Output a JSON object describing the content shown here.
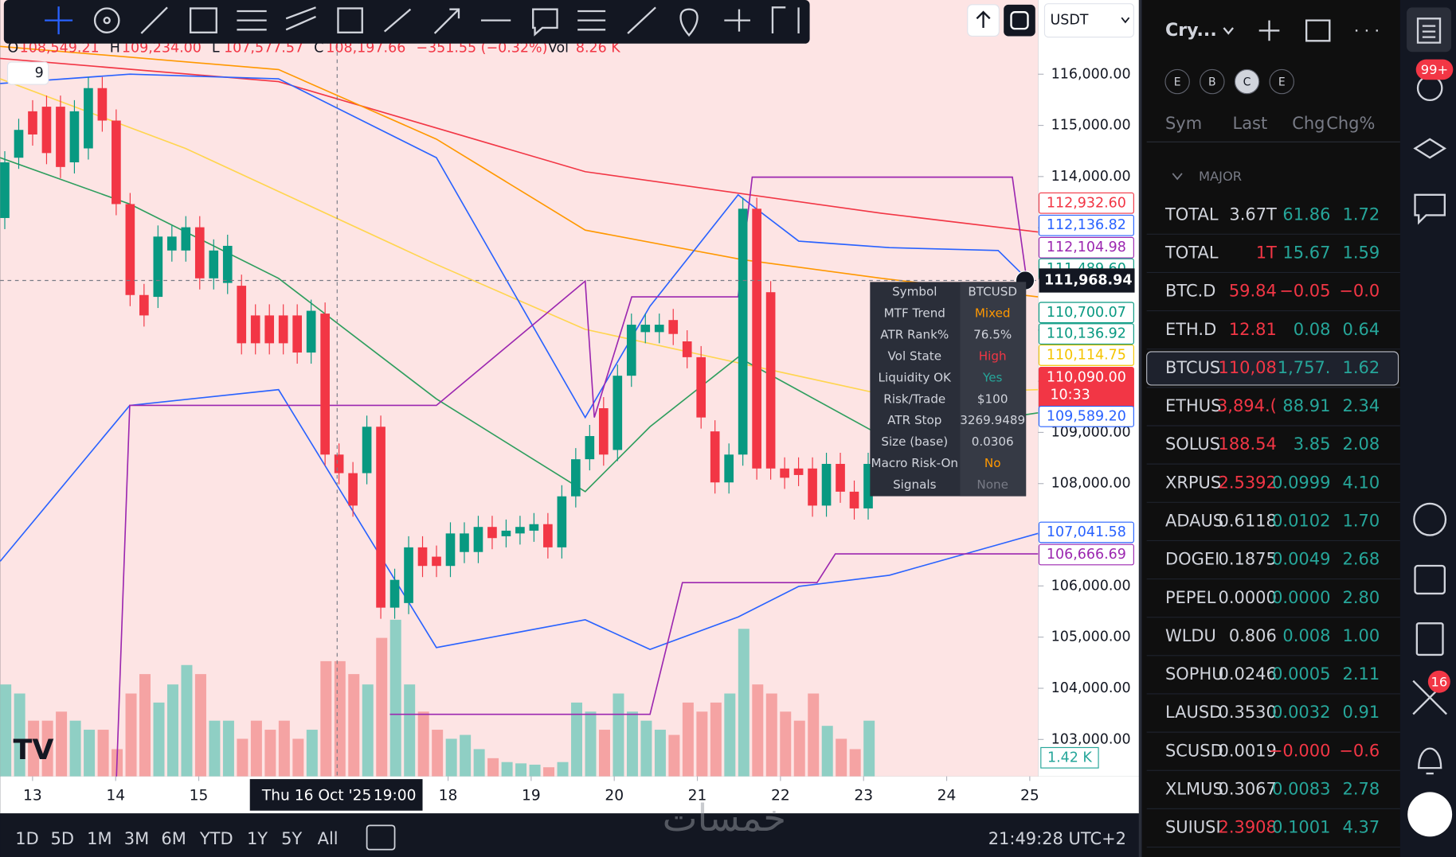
{
  "chart": {
    "type": "candlestick",
    "indicator_count": 9,
    "ohlc": [
      {
        "key": "O",
        "value": "108,549.21"
      },
      {
        "key": "H",
        "value": "109,234.00"
      },
      {
        "key": "L",
        "value": "107,577.57"
      },
      {
        "key": "C",
        "value": "108,197.66"
      }
    ],
    "change": "−351.55 (−0.32%)",
    "volume_key": "Vol",
    "volume_text": "8.26 K",
    "ylim": [
      102280,
      117450
    ],
    "yticks": [
      {
        "value": 116000,
        "label": "116,000.00"
      },
      {
        "value": 115000,
        "label": "115,000.00"
      },
      {
        "value": 114000,
        "label": "114,000.00"
      },
      {
        "value": 113000,
        "label": "113,000.00"
      },
      {
        "value": 112000,
        "label": "112,000.00"
      },
      {
        "value": 111000,
        "label": "111,000.00"
      },
      {
        "value": 110000,
        "label": "110,000.00"
      },
      {
        "value": 109000,
        "label": "109,000.00"
      },
      {
        "value": 108000,
        "label": "108,000.00"
      },
      {
        "value": 107000,
        "label": "107,000.00"
      },
      {
        "value": 106000,
        "label": "106,000.00"
      },
      {
        "value": 105000,
        "label": "105,000.00"
      },
      {
        "value": 104000,
        "label": "104,000.00"
      },
      {
        "value": 103000,
        "label": "103,000.00"
      }
    ],
    "xlim": [
      12.61,
      25.1
    ],
    "xticks": [
      13,
      14,
      15,
      18,
      19,
      20,
      21,
      22,
      23,
      24,
      25
    ],
    "crosshair_date": "Thu 16 Oct '25",
    "crosshair_time": "19:00",
    "candles": {
      "up_color": "#089981",
      "down_color": "#f23645",
      "open": [
        113190,
        114368,
        115275,
        115365,
        115365,
        114278,
        114550,
        115728,
        115094,
        113462,
        111685,
        111649,
        112555,
        112555,
        113009,
        112011,
        111921,
        111866,
        111286,
        111286,
        111286,
        111286,
        110561,
        111322,
        108567,
        108204,
        108204,
        109111,
        105576,
        105666,
        106754,
        106572,
        106391,
        106663,
        106663,
        107153,
        106971,
        107026,
        107080,
        107207,
        106754,
        107751,
        108476,
        109473,
        108657,
        110108,
        110960,
        110960,
        111196,
        110779,
        110470,
        109020,
        108023,
        108567,
        113371,
        111740,
        108295,
        108295,
        108295,
        107570,
        108385,
        107842,
        107515
      ],
      "close": [
        114278,
        114912,
        114822,
        114459,
        114187,
        115275,
        115728,
        115094,
        113462,
        111685,
        111286,
        112827,
        112827,
        113009,
        112011,
        112555,
        112646,
        110742,
        110742,
        110742,
        110742,
        110561,
        111377,
        108567,
        108204,
        107570,
        109111,
        105576,
        106119,
        106754,
        106391,
        106391,
        107026,
        107026,
        107153,
        106935,
        107080,
        107153,
        107207,
        106754,
        107751,
        108476,
        108929,
        108567,
        110108,
        111105,
        111105,
        111105,
        110924,
        110470,
        109292,
        108023,
        108567,
        113371,
        108295,
        108295,
        108114,
        108168,
        107570,
        108385,
        107842,
        107515,
        108385
      ]
    },
    "volume": {
      "vlim": [
        0,
        60
      ],
      "values": [
        7.1,
        6.4,
        4.3,
        4.3,
        5,
        4.3,
        3.6,
        3.6,
        2.1,
        6.4,
        7.9,
        5.7,
        7.1,
        8.6,
        7.9,
        4.3,
        4.3,
        2.9,
        4.3,
        3.6,
        4.3,
        2.9,
        3.6,
        8.9,
        8.9,
        7.9,
        7.1,
        10.7,
        12.1,
        7.1,
        5,
        3.6,
        2.9,
        3.2,
        2.1,
        1.4,
        1.1,
        1,
        0.9,
        0.7,
        1.1,
        5.7,
        5,
        3.6,
        6.4,
        5,
        4.3,
        3.6,
        3.2,
        5.7,
        5,
        5.7,
        6.4,
        11.4,
        7.1,
        6.4,
        5,
        4.3,
        6.4,
        3.9,
        2.9,
        2.1,
        4.3
      ],
      "tag": {
        "value": 1.42,
        "label": "1.42 K",
        "color": "#26a69a"
      }
    },
    "lines": [
      {
        "color": "#f23645",
        "x": [
          12.61,
          15.96,
          19.65,
          23.22,
          25.1
        ],
        "values": [
          116308,
          115855,
          114096,
          113281,
          112918
        ]
      },
      {
        "color": "#ff9800",
        "x": [
          12.61,
          15.96,
          17.86,
          19.65,
          21.55,
          23.22,
          25.1
        ],
        "values": [
          116544,
          116091,
          114731,
          112954,
          112374,
          112011,
          111649
        ]
      },
      {
        "color": "#ffd54f",
        "x": [
          12.61,
          14.84,
          17.86,
          19.65,
          23.22,
          25.1
        ],
        "values": [
          115909,
          114550,
          112283,
          111014,
          109745,
          109836
        ]
      },
      {
        "color": "#2e9e5e",
        "x": [
          12.61,
          14.17,
          15.96,
          17.86,
          19.65,
          20.43,
          21.49,
          23.22,
          25.1
        ],
        "values": [
          114368,
          113462,
          112011,
          109655,
          107842,
          109111,
          110470,
          108929,
          109383
        ]
      },
      {
        "color": "#2962ff",
        "x": [
          12.61,
          14.17,
          15.96,
          17.86,
          19.65,
          20.43,
          21.49,
          22.22,
          23.31,
          24.62,
          24.96
        ],
        "values": [
          115819,
          116000,
          115909,
          114368,
          109292,
          111468,
          113643,
          112737,
          112610,
          112555,
          112011
        ]
      },
      {
        "color": "#2962ff",
        "x": [
          12.61,
          14.17,
          15.96,
          17.86,
          19.65,
          20.43,
          21.49,
          22.22,
          23.31,
          25.1
        ],
        "values": [
          106482,
          109528,
          109836,
          104796,
          105340,
          104760,
          105394,
          105992,
          106210,
          107026
        ]
      },
      {
        "color": "#9c27b0",
        "x": [
          14.01,
          14.17,
          17.86,
          19.65,
          19.76,
          20.21,
          21.49,
          21.66,
          24.79,
          24.96
        ],
        "values": [
          102276,
          109528,
          109528,
          111957,
          109292,
          111649,
          111649,
          113988,
          113988,
          112011
        ]
      },
      {
        "color": "#9c27b0",
        "x": [
          17.3,
          20.43,
          20.82,
          22.44,
          22.66,
          25.1
        ],
        "values": [
          103490,
          103490,
          106065,
          106065,
          106627,
          106627
        ]
      }
    ],
    "price_tags": [
      {
        "value": 112932.6,
        "label": "112,932.60",
        "color": "#f23645",
        "filled": false
      },
      {
        "value": 112136.82,
        "label": "112,136.82",
        "color": "#2962ff",
        "filled": false
      },
      {
        "value": 112104.98,
        "label": "112,104.98",
        "color": "#9c27b0",
        "filled": false
      },
      {
        "value": 111489.6,
        "label": "111,489.60",
        "color": "#089981",
        "filled": false
      },
      {
        "value": 110700.07,
        "label": "110,700.07",
        "color": "#089981",
        "filled": false
      },
      {
        "value": 110136.92,
        "label": "110,136.92",
        "color": "#089981",
        "filled": false
      },
      {
        "value": 110114.75,
        "label": "110,114.75",
        "color": "#f5c400",
        "filled": false
      },
      {
        "value": 110090,
        "label": "110,090.00",
        "color": "#f23645",
        "filled": true,
        "countdown": "10:33"
      },
      {
        "value": 109589.2,
        "label": "109,589.20",
        "color": "#2962ff",
        "filled": false
      },
      {
        "value": 107041.58,
        "label": "107,041.58",
        "color": "#2962ff",
        "filled": false
      },
      {
        "value": 106666.69,
        "label": "106,666.69",
        "color": "#9c27b0",
        "filled": false
      }
    ],
    "crosshair_price": {
      "value": 111968.94,
      "label": "111,968.94"
    },
    "table": [
      {
        "key": "Symbol",
        "value": "BTCUSD",
        "color": "#d1d4dc"
      },
      {
        "key": "MTF Trend",
        "value": "Mixed",
        "color": "#ff9800"
      },
      {
        "key": "ATR Rank%",
        "value": "76.5%",
        "color": "#d1d4dc"
      },
      {
        "key": "Vol State",
        "value": "High",
        "color": "#f23645"
      },
      {
        "key": "Liquidity OK",
        "value": "Yes",
        "color": "#26a69a"
      },
      {
        "key": "Risk/Trade",
        "value": "$100",
        "color": "#d1d4dc"
      },
      {
        "key": "ATR Stop",
        "value": "3269.9489",
        "color": "#d1d4dc"
      },
      {
        "key": "Size (base)",
        "value": "0.0306",
        "color": "#d1d4dc"
      },
      {
        "key": "Macro Risk-On",
        "value": "No",
        "color": "#ff9800"
      },
      {
        "key": "Signals",
        "value": "None",
        "color": "#787b86"
      }
    ]
  },
  "toolbar": {
    "currency": "USDT"
  },
  "bottom_bar": {
    "ranges": [
      "1D",
      "5D",
      "1M",
      "3M",
      "6M",
      "YTD",
      "1Y",
      "5Y",
      "All"
    ],
    "clock": "21:49:28 UTC+2",
    "watermark": "خمسات"
  },
  "watchlist": {
    "title": "Cry...",
    "tabs": [
      "E",
      "B",
      "C",
      "E"
    ],
    "columns": [
      "Sym",
      "Last",
      "Chg",
      "Chg%"
    ],
    "section": "MAJOR",
    "rows": [
      {
        "symbol": "TOTAL",
        "last": "3.67T",
        "chg": "61.86",
        "chgp": "1.72",
        "last_color": "#d1d4dc",
        "chg_color": "#26a69a"
      },
      {
        "symbol": "TOTAL",
        "last": "1T",
        "chg": "15.67",
        "chgp": "1.59",
        "last_color": "#f23645",
        "chg_color": "#26a69a"
      },
      {
        "symbol": "BTC.D",
        "last": "59.84",
        "chg": "−0.05",
        "chgp": "−0.0",
        "last_color": "#f23645",
        "chg_color": "#f23645"
      },
      {
        "symbol": "ETH.D",
        "last": "12.81",
        "chg": "0.08",
        "chgp": "0.64",
        "last_color": "#f23645",
        "chg_color": "#26a69a"
      },
      {
        "symbol": "BTCUS",
        "last": "110,08",
        "chg": "1,757.",
        "chgp": "1.62",
        "last_color": "#f23645",
        "chg_color": "#26a69a"
      },
      {
        "symbol": "ETHUS",
        "last": "3,894.(",
        "chg": "88.91",
        "chgp": "2.34",
        "last_color": "#f23645",
        "chg_color": "#26a69a"
      },
      {
        "symbol": "SOLUS",
        "last": "188.54",
        "chg": "3.85",
        "chgp": "2.08",
        "last_color": "#f23645",
        "chg_color": "#26a69a"
      },
      {
        "symbol": "XRPUS",
        "last": "2.5392",
        "chg": "0.0999",
        "chgp": "4.10",
        "last_color": "#f23645",
        "chg_color": "#26a69a"
      },
      {
        "symbol": "ADAUS",
        "last": "0.6118",
        "chg": "0.0102",
        "chgp": "1.70",
        "last_color": "#d1d4dc",
        "chg_color": "#26a69a"
      },
      {
        "symbol": "DOGEI",
        "last": "0.1875",
        "chg": "0.0049",
        "chgp": "2.68",
        "last_color": "#d1d4dc",
        "chg_color": "#26a69a"
      },
      {
        "symbol": "PEPEL",
        "last": "0.0000",
        "chg": "0.0000",
        "chgp": "2.80",
        "last_color": "#d1d4dc",
        "chg_color": "#26a69a"
      },
      {
        "symbol": "WLDU",
        "last": "0.806",
        "chg": "0.008",
        "chgp": "1.00",
        "last_color": "#d1d4dc",
        "chg_color": "#26a69a"
      },
      {
        "symbol": "SOPHU",
        "last": "0.0246",
        "chg": "0.0005",
        "chgp": "2.11",
        "last_color": "#d1d4dc",
        "chg_color": "#26a69a"
      },
      {
        "symbol": "LAUSD",
        "last": "0.3530",
        "chg": "0.0032",
        "chgp": "0.91",
        "last_color": "#d1d4dc",
        "chg_color": "#26a69a"
      },
      {
        "symbol": "SCUSD",
        "last": "0.0019",
        "chg": "−0.000",
        "chgp": "−0.6",
        "last_color": "#d1d4dc",
        "chg_color": "#f23645"
      },
      {
        "symbol": "XLMUS",
        "last": "0.3067",
        "chg": "0.0083",
        "chgp": "2.78",
        "last_color": "#d1d4dc",
        "chg_color": "#26a69a"
      },
      {
        "symbol": "SUIUSI",
        "last": "2.3908",
        "chg": "0.1001",
        "chgp": "4.37",
        "last_color": "#f23645",
        "chg_color": "#26a69a"
      }
    ]
  },
  "sidebar": {
    "notifications": "99+",
    "alerts": "16"
  }
}
